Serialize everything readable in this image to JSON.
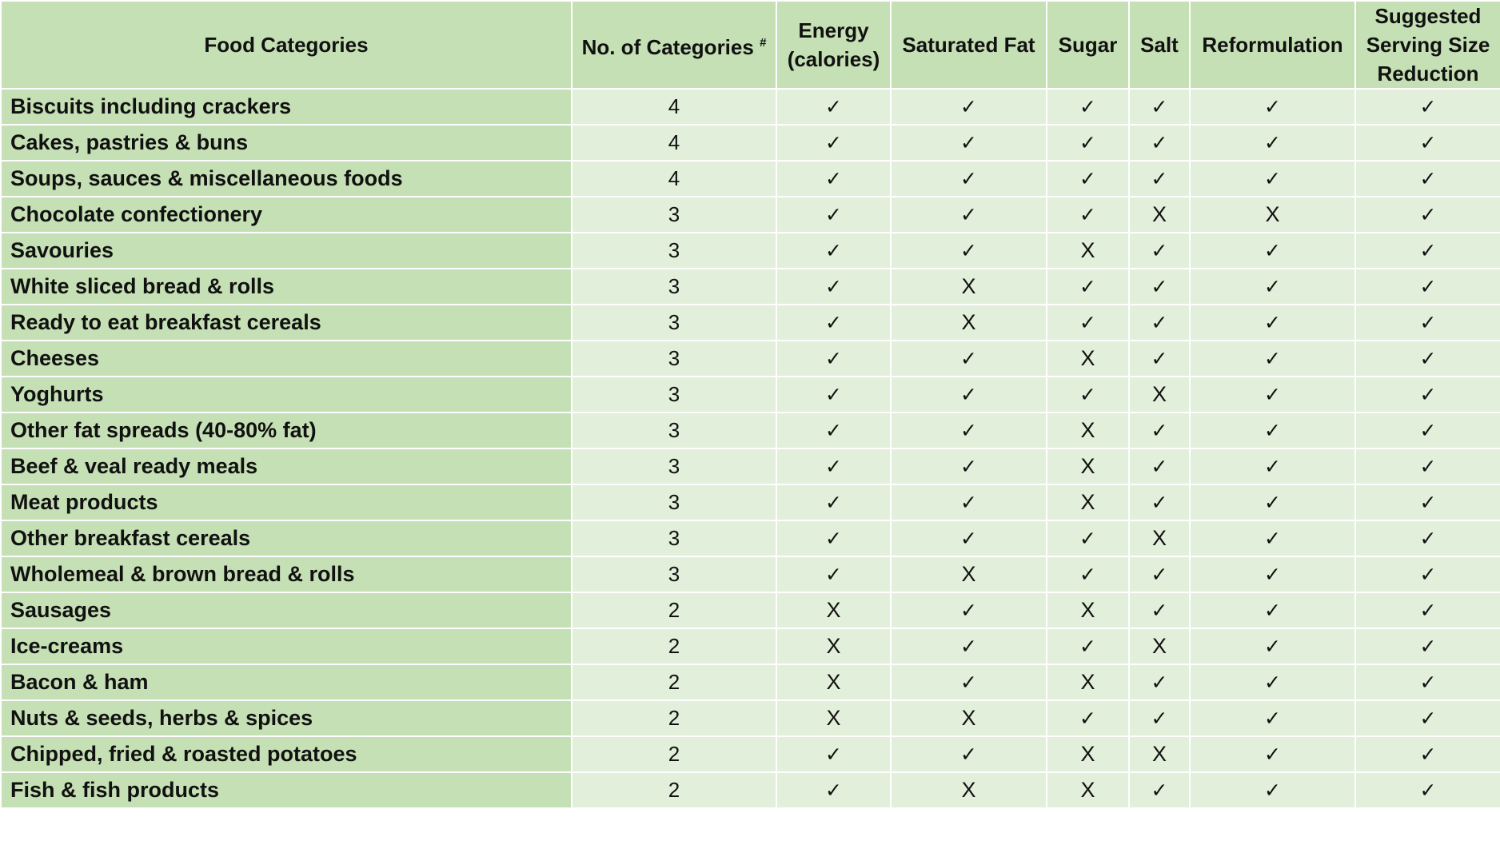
{
  "headers": {
    "food": "Food Categories",
    "count": "No. of Categories",
    "count_sup": "#",
    "energy": "Energy (calories)",
    "satfat": "Saturated Fat",
    "sugar": "Sugar",
    "salt": "Salt",
    "reform": "Reformulation",
    "serving": "Suggested Serving Size Reduction"
  },
  "symbols": {
    "yes": "✓",
    "no": "X"
  },
  "rows": [
    {
      "name": "Biscuits including crackers",
      "count": "4",
      "energy": "✓",
      "satfat": "✓",
      "sugar": "✓",
      "salt": "✓",
      "reform": "✓",
      "serving": "✓"
    },
    {
      "name": "Cakes, pastries & buns",
      "count": "4",
      "energy": "✓",
      "satfat": "✓",
      "sugar": "✓",
      "salt": "✓",
      "reform": "✓",
      "serving": "✓"
    },
    {
      "name": "Soups, sauces & miscellaneous foods",
      "count": "4",
      "energy": "✓",
      "satfat": "✓",
      "sugar": "✓",
      "salt": "✓",
      "reform": "✓",
      "serving": "✓"
    },
    {
      "name": "Chocolate confectionery",
      "count": "3",
      "energy": "✓",
      "satfat": "✓",
      "sugar": "✓",
      "salt": "X",
      "reform": "X",
      "serving": "✓"
    },
    {
      "name": "Savouries",
      "count": "3",
      "energy": "✓",
      "satfat": "✓",
      "sugar": "X",
      "salt": "✓",
      "reform": "✓",
      "serving": "✓"
    },
    {
      "name": "White sliced bread & rolls",
      "count": "3",
      "energy": "✓",
      "satfat": "X",
      "sugar": "✓",
      "salt": "✓",
      "reform": "✓",
      "serving": "✓"
    },
    {
      "name": "Ready to eat breakfast cereals",
      "count": "3",
      "energy": "✓",
      "satfat": "X",
      "sugar": "✓",
      "salt": "✓",
      "reform": "✓",
      "serving": "✓"
    },
    {
      "name": "Cheeses",
      "count": "3",
      "energy": "✓",
      "satfat": "✓",
      "sugar": "X",
      "salt": "✓",
      "reform": "✓",
      "serving": "✓"
    },
    {
      "name": "Yoghurts",
      "count": "3",
      "energy": "✓",
      "satfat": "✓",
      "sugar": "✓",
      "salt": "X",
      "reform": "✓",
      "serving": "✓"
    },
    {
      "name": "Other fat spreads (40-80% fat)",
      "count": "3",
      "energy": "✓",
      "satfat": "✓",
      "sugar": "X",
      "salt": "✓",
      "reform": "✓",
      "serving": "✓"
    },
    {
      "name": "Beef & veal ready meals",
      "count": "3",
      "energy": "✓",
      "satfat": "✓",
      "sugar": "X",
      "salt": "✓",
      "reform": "✓",
      "serving": "✓"
    },
    {
      "name": "Meat products",
      "count": "3",
      "energy": "✓",
      "satfat": "✓",
      "sugar": "X",
      "salt": "✓",
      "reform": "✓",
      "serving": "✓"
    },
    {
      "name": "Other breakfast cereals",
      "count": "3",
      "energy": "✓",
      "satfat": "✓",
      "sugar": "✓",
      "salt": "X",
      "reform": "✓",
      "serving": "✓"
    },
    {
      "name": "Wholemeal & brown bread & rolls",
      "count": "3",
      "energy": "✓",
      "satfat": "X",
      "sugar": "✓",
      "salt": "✓",
      "reform": "✓",
      "serving": "✓"
    },
    {
      "name": "Sausages",
      "count": "2",
      "energy": "X",
      "satfat": "✓",
      "sugar": "X",
      "salt": "✓",
      "reform": "✓",
      "serving": "✓"
    },
    {
      "name": "Ice-creams",
      "count": "2",
      "energy": "X",
      "satfat": "✓",
      "sugar": "✓",
      "salt": "X",
      "reform": "✓",
      "serving": "✓"
    },
    {
      "name": "Bacon & ham",
      "count": "2",
      "energy": "X",
      "satfat": "✓",
      "sugar": "X",
      "salt": "✓",
      "reform": "✓",
      "serving": "✓"
    },
    {
      "name": "Nuts & seeds, herbs & spices",
      "count": "2",
      "energy": "X",
      "satfat": "X",
      "sugar": "✓",
      "salt": "✓",
      "reform": "✓",
      "serving": "✓"
    },
    {
      "name": "Chipped, fried & roasted potatoes",
      "count": "2",
      "energy": "✓",
      "satfat": "✓",
      "sugar": "X",
      "salt": "X",
      "reform": "✓",
      "serving": "✓"
    },
    {
      "name": "Fish & fish products",
      "count": "2",
      "energy": "✓",
      "satfat": "X",
      "sugar": "X",
      "salt": "✓",
      "reform": "✓",
      "serving": "✓"
    }
  ]
}
